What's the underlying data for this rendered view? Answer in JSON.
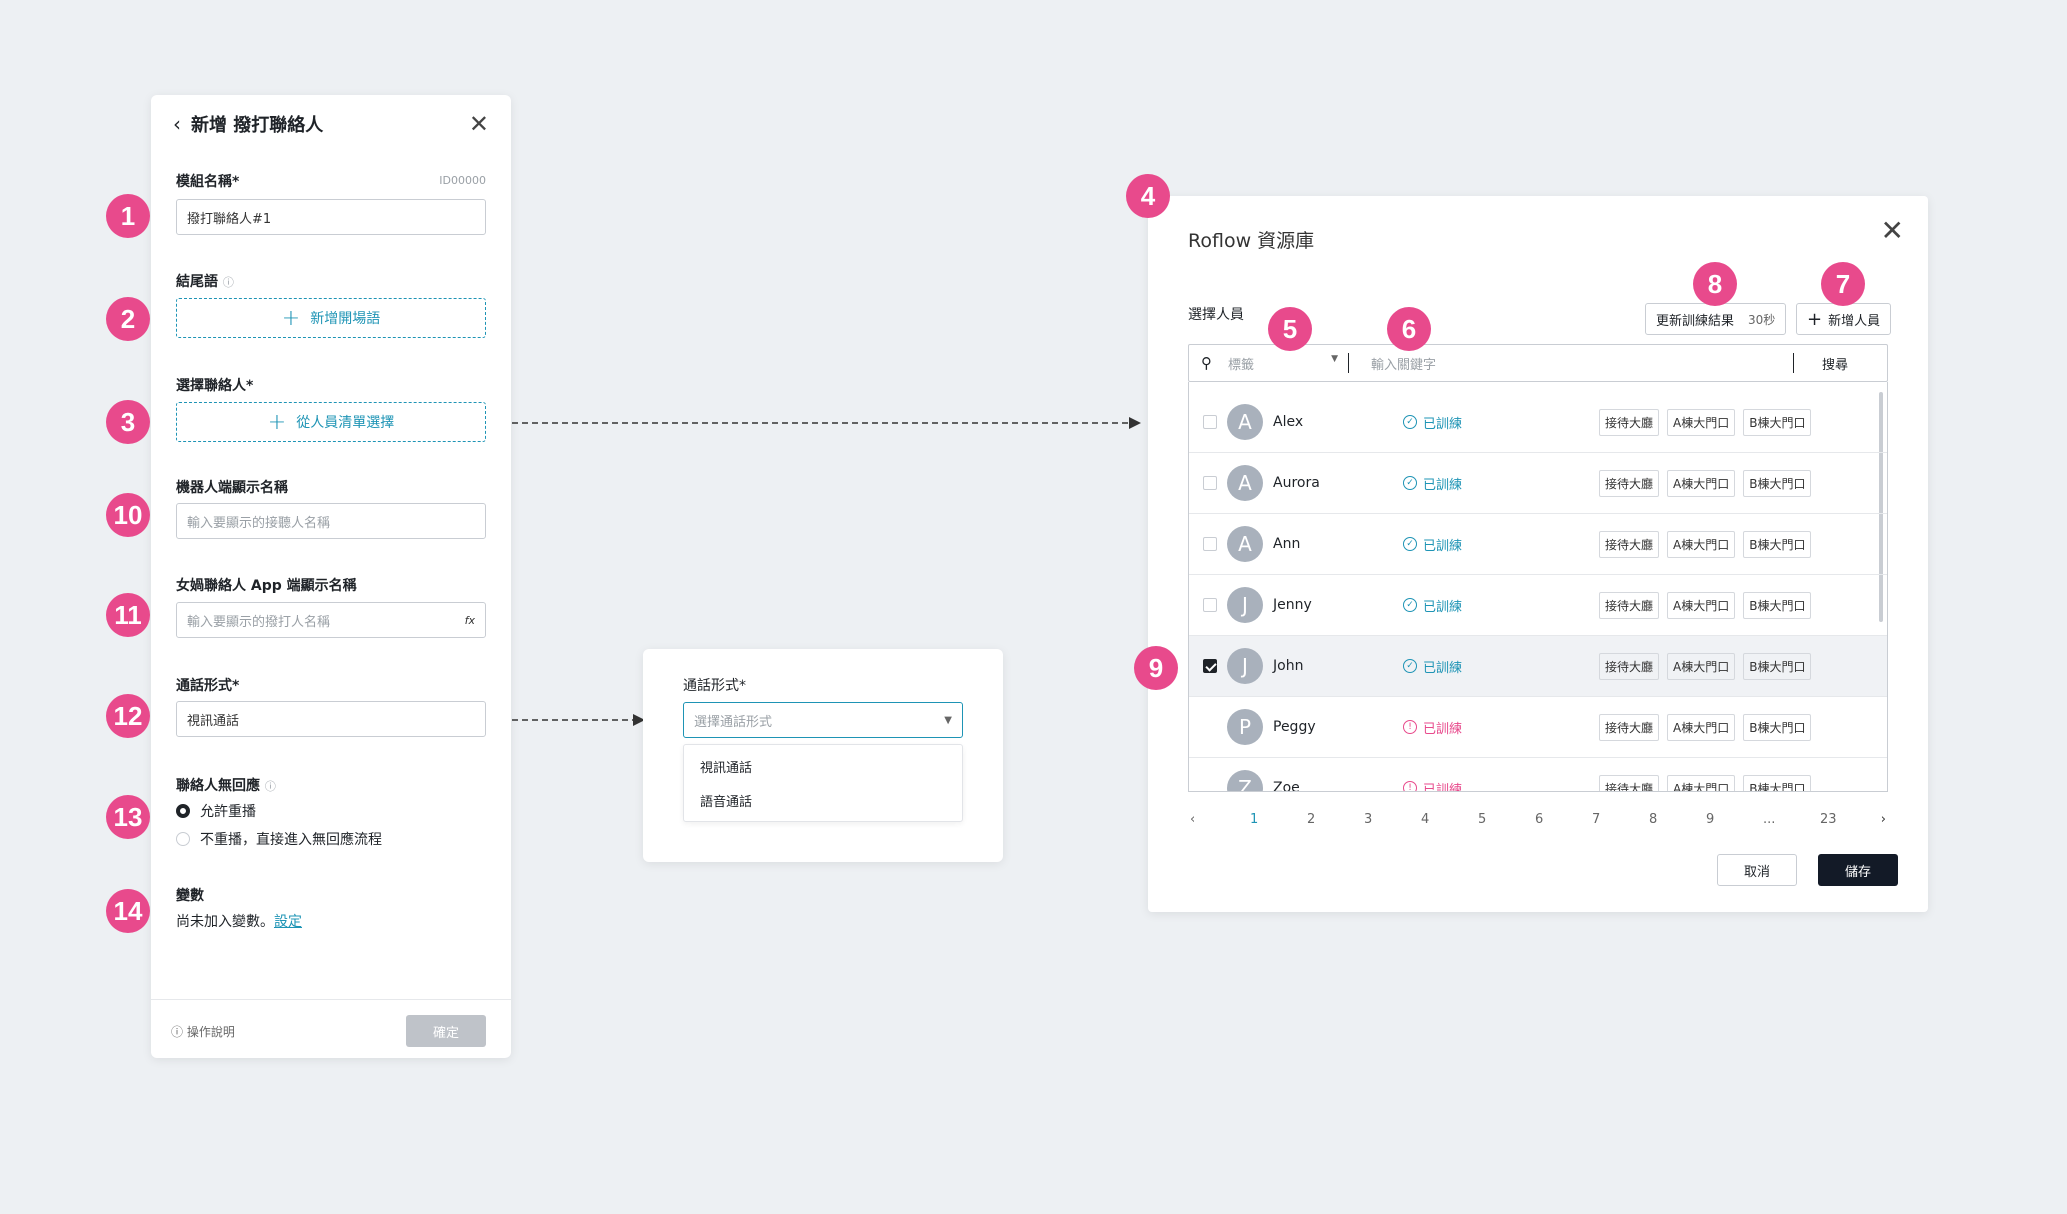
{
  "badges": [
    "1",
    "2",
    "3",
    "10",
    "11",
    "12",
    "13",
    "14",
    "4",
    "5",
    "6",
    "7",
    "8",
    "9"
  ],
  "left_panel": {
    "title": "新增 撥打聯絡人",
    "module_label": "模組名稱*",
    "module_id": "ID00000",
    "module_value": "撥打聯絡人#1",
    "ending_label": "結尾語",
    "add_opening": "新增開場語",
    "contact_label": "選擇聯絡人*",
    "contact_button": "從人員清單選擇",
    "robot_label": "機器人端顯示名稱",
    "robot_placeholder": "輸入要顯示的接聽人名稱",
    "app_label": "女媧聯絡人 App 端顯示名稱",
    "app_placeholder": "輸入要顯示的撥打人名稱",
    "app_fx": "fx",
    "call_type_label": "通話形式*",
    "call_type_value": "視訊通話",
    "no_response_label": "聯絡人無回應",
    "radio_1": "允許重播",
    "radio_2": "不重播，直接進入無回應流程",
    "var_label": "變數",
    "var_text": "尚未加入變數。",
    "var_link": "設定",
    "help": "操作說明",
    "confirm": "確定"
  },
  "mid_panel": {
    "label": "通話形式*",
    "placeholder": "選擇通話形式",
    "options": [
      "視訊通話",
      "語音通話"
    ]
  },
  "right_panel": {
    "title": "Roflow 資源庫",
    "select_label": "選擇人員",
    "refresh_button": "更新訓練結果",
    "refresh_time": "30秒",
    "add_button": "新增人員",
    "tag_placeholder": "標籤",
    "keyword_placeholder": "輸入關鍵字",
    "search_button": "搜尋",
    "rows": [
      {
        "initial": "A",
        "name": "Alex",
        "status": "已訓練",
        "ok": true,
        "checked": false
      },
      {
        "initial": "A",
        "name": "Aurora",
        "status": "已訓練",
        "ok": true,
        "checked": false
      },
      {
        "initial": "A",
        "name": "Ann",
        "status": "已訓練",
        "ok": true,
        "checked": false
      },
      {
        "initial": "J",
        "name": "Jenny",
        "status": "已訓練",
        "ok": true,
        "checked": false
      },
      {
        "initial": "J",
        "name": "John",
        "status": "已訓練",
        "ok": true,
        "checked": true
      },
      {
        "initial": "P",
        "name": "Peggy",
        "status": "已訓練",
        "ok": false,
        "checked": false
      },
      {
        "initial": "Z",
        "name": "Zoe",
        "status": "已訓練",
        "ok": false,
        "checked": false
      }
    ],
    "tags": [
      "接待大廳",
      "A棟大門口",
      "B棟大門口"
    ],
    "pages": [
      "1",
      "2",
      "3",
      "4",
      "5",
      "6",
      "7",
      "8",
      "9",
      "...",
      "23"
    ],
    "cancel": "取消",
    "save": "儲存"
  },
  "colors": {
    "accent": "#1e94b5",
    "badge": "#e84a8c",
    "primary_dark": "#131a27"
  }
}
